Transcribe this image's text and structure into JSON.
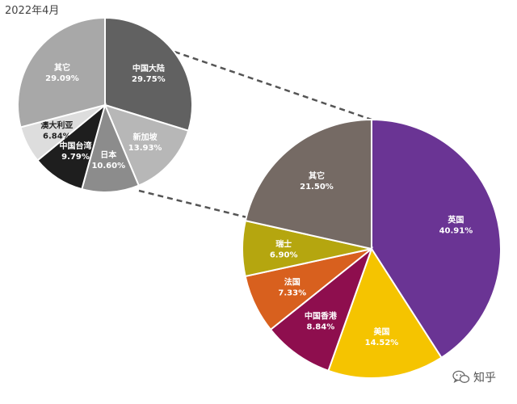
{
  "chart_data": {
    "type": "pie",
    "period": "2022年4月",
    "charts": [
      {
        "slices": [
          {
            "label": "中国大陆",
            "value": 29.75,
            "value_label": "29.75%",
            "color": "#616161"
          },
          {
            "label": "新加坡",
            "value": 13.93,
            "value_label": "13.93%",
            "color": "#B7B7B7"
          },
          {
            "label": "日本",
            "value": 10.6,
            "value_label": "10.60%",
            "color": "#8C8C8C"
          },
          {
            "label": "中国台湾",
            "value": 9.79,
            "value_label": "9.79%",
            "color": "#1E1E1E"
          },
          {
            "label": "澳大利亚",
            "value": 6.84,
            "value_label": "6.84%",
            "color": "#DDDDDD"
          },
          {
            "label": "其它",
            "value": 29.09,
            "value_label": "29.09%",
            "color": "#A8A8A8"
          }
        ]
      },
      {
        "slices": [
          {
            "label": "英国",
            "value": 40.91,
            "value_label": "40.91%",
            "color": "#6A3494"
          },
          {
            "label": "美国",
            "value": 14.52,
            "value_label": "14.52%",
            "color": "#F5C400"
          },
          {
            "label": "中国香港",
            "value": 8.84,
            "value_label": "8.84%",
            "color": "#8E0E4E"
          },
          {
            "label": "法国",
            "value": 7.33,
            "value_label": "7.33%",
            "color": "#D8601E"
          },
          {
            "label": "瑞士",
            "value": 6.9,
            "value_label": "6.90%",
            "color": "#B5A60F"
          },
          {
            "label": "其它",
            "value": 21.5,
            "value_label": "21.50%",
            "color": "#756A64"
          }
        ]
      }
    ]
  },
  "watermark": {
    "text": "知乎",
    "icon": "wechat-icon"
  }
}
